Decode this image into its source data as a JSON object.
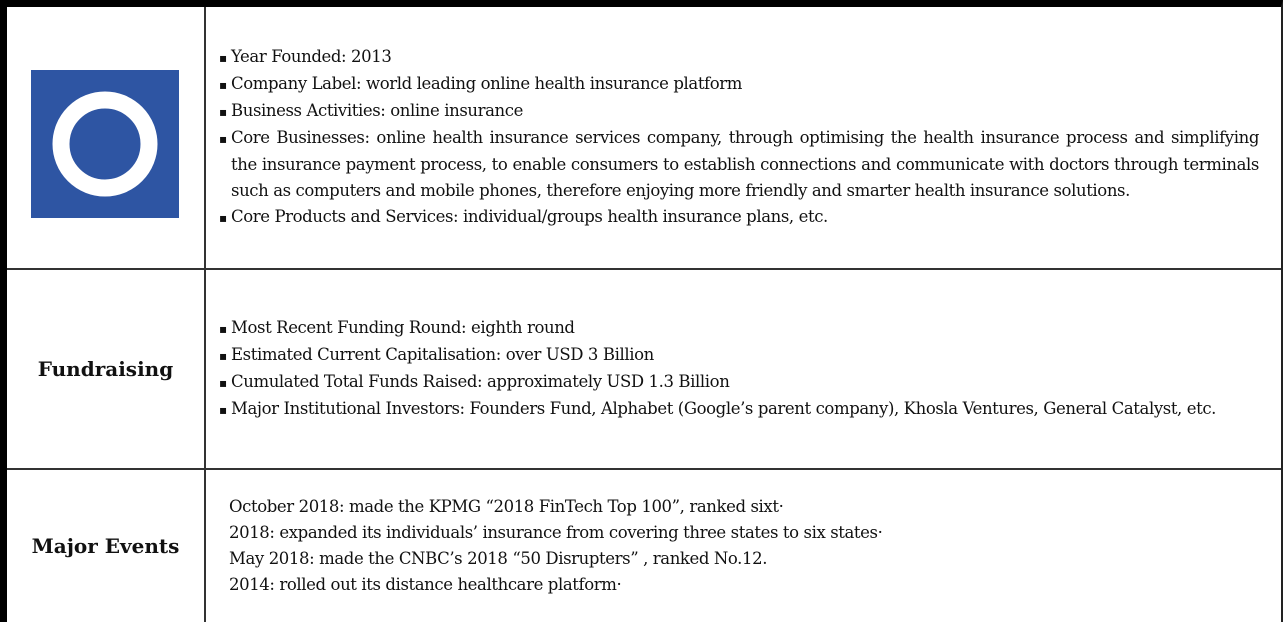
{
  "profile": {
    "overview": {
      "items": [
        "Year Founded: 2013",
        "Company Label: world leading online health insurance platform",
        "Business Activities: online insurance",
        "Core Businesses: online health insurance services company, through optimising the health insurance process and simplifying the insurance payment process, to enable consumers to establish connections and communicate with doctors through terminals such as computers and mobile phones, therefore enjoying more friendly and smarter health insurance solutions.",
        "Core Products and Services: individual/groups health insurance plans, etc."
      ]
    },
    "fundraising": {
      "label": "Fundraising",
      "items": [
        "Most Recent Funding Round: eighth round",
        "Estimated Current Capitalisation: over USD 3 Billion",
        "Cumulated Total Funds Raised: approximately USD 1.3 Billion",
        "Major Institutional Investors: Founders Fund, Alphabet (Google’s parent company), Khosla Ventures, General Catalyst, etc."
      ]
    },
    "events": {
      "label": "Major Events",
      "items": [
        "October 2018: made the KPMG “2018 FinTech Top 100”, ranked sixt·",
        "2018: expanded its individuals’ insurance from covering three states to six states·",
        "May 2018: made the CNBC’s 2018 “50 Disrupters” , ranked No.12.",
        "2014: rolled out its distance healthcare platform·"
      ]
    }
  }
}
